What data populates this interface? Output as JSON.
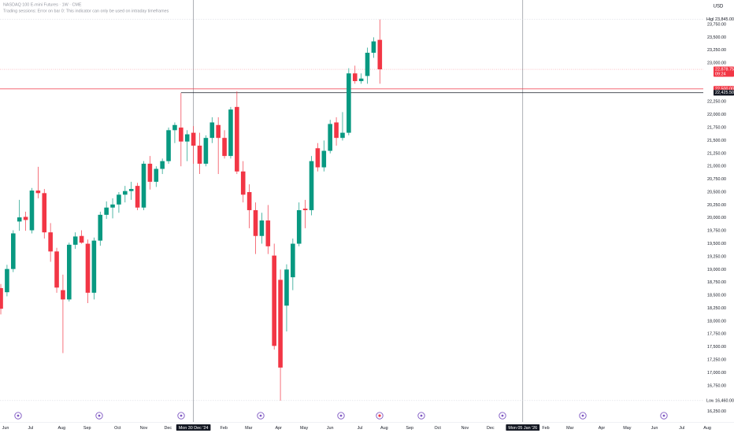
{
  "chart_data": {
    "type": "candlestick",
    "title": "NASDAQ 100 E-mini Futures · 1W · CME",
    "subtitle": "Trading sessions: Error on bar 0: This indicator can only be used on intraday timeframes",
    "currency": "USD",
    "up_color": "#089981",
    "down_color": "#f23645",
    "ylim": [
      16000,
      24100
    ],
    "xlim": [
      -0.13,
      112.04
    ],
    "yticks": [
      {
        "value": 16250,
        "label": "16,250.00"
      },
      {
        "value": 16750,
        "label": "16,750.00"
      },
      {
        "value": 17000,
        "label": "17,000.00"
      },
      {
        "value": 17250,
        "label": "17,250.00"
      },
      {
        "value": 17500,
        "label": "17,500.00"
      },
      {
        "value": 17750,
        "label": "17,750.00"
      },
      {
        "value": 18000,
        "label": "18,000.00"
      },
      {
        "value": 18250,
        "label": "18,250.00"
      },
      {
        "value": 18500,
        "label": "18,500.00"
      },
      {
        "value": 18750,
        "label": "18,750.00"
      },
      {
        "value": 19000,
        "label": "19,000.00"
      },
      {
        "value": 19250,
        "label": "19,250.00"
      },
      {
        "value": 19500,
        "label": "19,500.00"
      },
      {
        "value": 19750,
        "label": "19,750.00"
      },
      {
        "value": 20000,
        "label": "20,000.00"
      },
      {
        "value": 20250,
        "label": "20,250.00"
      },
      {
        "value": 20500,
        "label": "20,500.00"
      },
      {
        "value": 20750,
        "label": "20,750.00"
      },
      {
        "value": 21000,
        "label": "21,000.00"
      },
      {
        "value": 21250,
        "label": "21,250.00"
      },
      {
        "value": 21500,
        "label": "21,500.00"
      },
      {
        "value": 21750,
        "label": "21,750.00"
      },
      {
        "value": 22000,
        "label": "22,000.00"
      },
      {
        "value": 22250,
        "label": "22,250.00"
      },
      {
        "value": 23000,
        "label": "23,000.00"
      },
      {
        "value": 23250,
        "label": "23,250.00"
      },
      {
        "value": 23500,
        "label": "23,500.00"
      },
      {
        "value": 23750,
        "label": "23,750.00"
      }
    ],
    "xticks": [
      {
        "value": 0.76,
        "label": "Jun"
      },
      {
        "value": 4.8,
        "label": "Jul"
      },
      {
        "value": 9.8,
        "label": "Aug"
      },
      {
        "value": 13.9,
        "label": "Sep"
      },
      {
        "value": 18.8,
        "label": "Oct"
      },
      {
        "value": 23,
        "label": "Nov"
      },
      {
        "value": 26.9,
        "label": "Dec"
      },
      {
        "value": 31,
        "label": "Mon 30 Dec '24",
        "highlight": true
      },
      {
        "value": 35.9,
        "label": "Feb"
      },
      {
        "value": 39.9,
        "label": "Mar"
      },
      {
        "value": 44.7,
        "label": "Apr"
      },
      {
        "value": 48.8,
        "label": "May"
      },
      {
        "value": 53,
        "label": "Jun"
      },
      {
        "value": 57.8,
        "label": "Jul"
      },
      {
        "value": 61.7,
        "label": "Aug"
      },
      {
        "value": 65.8,
        "label": "Sep"
      },
      {
        "value": 70.3,
        "label": "Oct"
      },
      {
        "value": 74.7,
        "label": "Nov"
      },
      {
        "value": 78.8,
        "label": "Dec"
      },
      {
        "value": 84,
        "label": "Mon 05 Jan '26",
        "highlight": true
      },
      {
        "value": 87.7,
        "label": "Feb"
      },
      {
        "value": 91.6,
        "label": "Mar"
      },
      {
        "value": 96.7,
        "label": "Apr"
      },
      {
        "value": 100.8,
        "label": "May"
      },
      {
        "value": 105.2,
        "label": "Jun"
      },
      {
        "value": 109.6,
        "label": "Jul"
      },
      {
        "value": 113.7,
        "label": "Aug"
      }
    ],
    "candles": [
      {
        "open": 18640,
        "high": 18720,
        "low": 18130,
        "close": 18240
      },
      {
        "open": 18560,
        "high": 19090,
        "low": 18480,
        "close": 19010
      },
      {
        "open": 19010,
        "high": 19760,
        "low": 18950,
        "close": 19700
      },
      {
        "open": 19930,
        "high": 20350,
        "low": 19750,
        "close": 20010
      },
      {
        "open": 20020,
        "high": 20120,
        "low": 19750,
        "close": 19960
      },
      {
        "open": 19760,
        "high": 20580,
        "low": 19700,
        "close": 20530
      },
      {
        "open": 20530,
        "high": 20990,
        "low": 20380,
        "close": 20480
      },
      {
        "open": 20480,
        "high": 20560,
        "low": 19600,
        "close": 19720
      },
      {
        "open": 19720,
        "high": 19900,
        "low": 19150,
        "close": 19350
      },
      {
        "open": 19350,
        "high": 19420,
        "low": 18550,
        "close": 18650
      },
      {
        "open": 18600,
        "high": 18900,
        "low": 17380,
        "close": 18420
      },
      {
        "open": 18420,
        "high": 19520,
        "low": 18380,
        "close": 19480
      },
      {
        "open": 19480,
        "high": 19720,
        "low": 19400,
        "close": 19640
      },
      {
        "open": 19650,
        "high": 19760,
        "low": 19500,
        "close": 19520
      },
      {
        "open": 19500,
        "high": 19580,
        "low": 18350,
        "close": 18550
      },
      {
        "open": 18550,
        "high": 19620,
        "low": 18420,
        "close": 19560
      },
      {
        "open": 19560,
        "high": 20120,
        "low": 19460,
        "close": 20060
      },
      {
        "open": 20060,
        "high": 20320,
        "low": 19980,
        "close": 20200
      },
      {
        "open": 20200,
        "high": 20380,
        "low": 19990,
        "close": 20260
      },
      {
        "open": 20260,
        "high": 20500,
        "low": 20100,
        "close": 20450
      },
      {
        "open": 20450,
        "high": 20620,
        "low": 20300,
        "close": 20520
      },
      {
        "open": 20520,
        "high": 20700,
        "low": 20350,
        "close": 20560
      },
      {
        "open": 20620,
        "high": 20680,
        "low": 20150,
        "close": 20200
      },
      {
        "open": 20200,
        "high": 21100,
        "low": 20150,
        "close": 21050
      },
      {
        "open": 21050,
        "high": 21200,
        "low": 20550,
        "close": 20700
      },
      {
        "open": 20700,
        "high": 21000,
        "low": 20600,
        "close": 20950
      },
      {
        "open": 20950,
        "high": 21150,
        "low": 20850,
        "close": 21100
      },
      {
        "open": 21100,
        "high": 21750,
        "low": 21050,
        "close": 21700
      },
      {
        "open": 21700,
        "high": 21850,
        "low": 21450,
        "close": 21800
      },
      {
        "open": 21750,
        "high": 22420,
        "low": 21000,
        "close": 21480
      },
      {
        "open": 21480,
        "high": 21700,
        "low": 21100,
        "close": 21620
      },
      {
        "open": 21650,
        "high": 21780,
        "low": 21050,
        "close": 21400
      },
      {
        "open": 21400,
        "high": 21650,
        "low": 20850,
        "close": 21050
      },
      {
        "open": 21050,
        "high": 21600,
        "low": 21000,
        "close": 21550
      },
      {
        "open": 21550,
        "high": 21950,
        "low": 21450,
        "close": 21850
      },
      {
        "open": 21800,
        "high": 21950,
        "low": 20850,
        "close": 21550
      },
      {
        "open": 21550,
        "high": 21700,
        "low": 21150,
        "close": 21200
      },
      {
        "open": 21200,
        "high": 22150,
        "low": 21150,
        "close": 22100
      },
      {
        "open": 22150,
        "high": 22450,
        "low": 20850,
        "close": 20900
      },
      {
        "open": 20900,
        "high": 21100,
        "low": 20300,
        "close": 20450
      },
      {
        "open": 20500,
        "high": 20650,
        "low": 19800,
        "close": 20150
      },
      {
        "open": 20150,
        "high": 20300,
        "low": 19300,
        "close": 19650
      },
      {
        "open": 19650,
        "high": 20100,
        "low": 19500,
        "close": 19950
      },
      {
        "open": 19950,
        "high": 20250,
        "low": 19300,
        "close": 19450
      },
      {
        "open": 19270,
        "high": 19500,
        "low": 17450,
        "close": 17520
      },
      {
        "open": 18800,
        "high": 19000,
        "low": 16460,
        "close": 17100
      },
      {
        "open": 18300,
        "high": 19100,
        "low": 17800,
        "close": 19000
      },
      {
        "open": 18850,
        "high": 19600,
        "low": 18600,
        "close": 19500
      },
      {
        "open": 19500,
        "high": 20300,
        "low": 19450,
        "close": 20150
      },
      {
        "open": 20180,
        "high": 20350,
        "low": 19800,
        "close": 20150
      },
      {
        "open": 20150,
        "high": 21200,
        "low": 20050,
        "close": 21100
      },
      {
        "open": 21350,
        "high": 21450,
        "low": 20900,
        "close": 20980
      },
      {
        "open": 20980,
        "high": 21500,
        "low": 20900,
        "close": 21300
      },
      {
        "open": 21300,
        "high": 21900,
        "low": 21250,
        "close": 21820
      },
      {
        "open": 21850,
        "high": 21950,
        "low": 21400,
        "close": 21550
      },
      {
        "open": 21550,
        "high": 22050,
        "low": 21500,
        "close": 21650
      },
      {
        "open": 21650,
        "high": 22900,
        "low": 21600,
        "close": 22800
      },
      {
        "open": 22800,
        "high": 22950,
        "low": 22600,
        "close": 22650
      },
      {
        "open": 22650,
        "high": 22800,
        "low": 22600,
        "close": 22700
      },
      {
        "open": 22750,
        "high": 23300,
        "low": 22600,
        "close": 23200
      },
      {
        "open": 23200,
        "high": 23500,
        "low": 23100,
        "close": 23420
      },
      {
        "open": 23450,
        "high": 23845,
        "low": 22600,
        "close": 22878.75
      }
    ],
    "high_marker": {
      "label": "High",
      "value": 23845,
      "value_label": "23,845.00"
    },
    "low_marker": {
      "label": "Low",
      "value": 16460,
      "value_label": "16,460.00"
    },
    "last_price": {
      "value": 22878.75,
      "value_label": "22,878.75",
      "countdown": "09:24",
      "color": "#f23645"
    },
    "hlines": [
      {
        "value": 22500,
        "value_label": "22,500.00",
        "color": "#f23645"
      },
      {
        "value": 22425.5,
        "value_label": "22,425.50",
        "color": "#131722",
        "start": 29
      }
    ]
  }
}
